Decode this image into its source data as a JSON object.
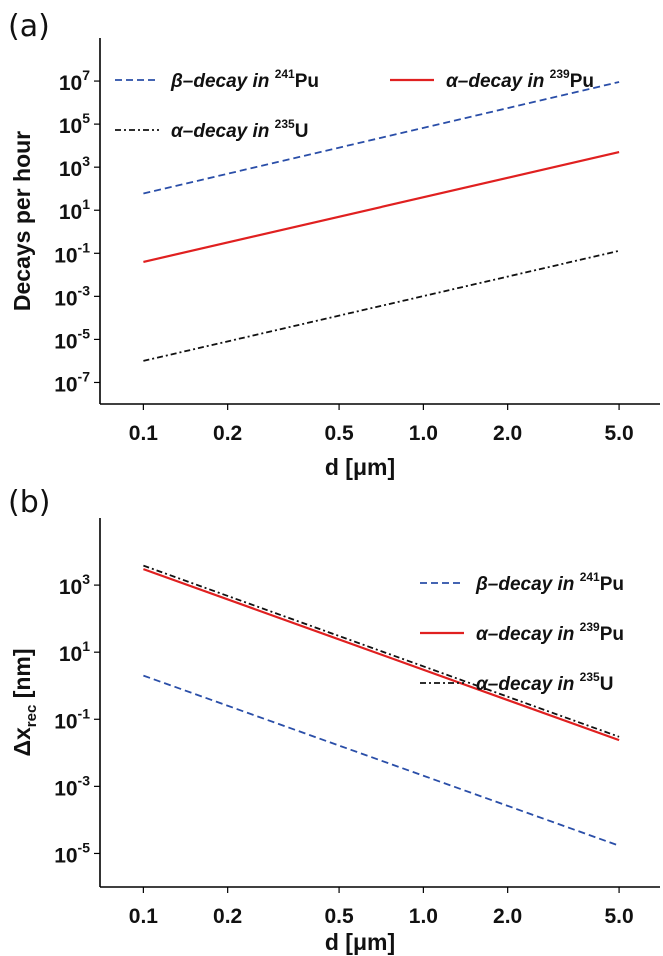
{
  "chart_data": [
    {
      "panel_label": "(a)",
      "type": "line",
      "xlabel": "d [μm]",
      "ylabel": "Decays per hour",
      "xscale": "log",
      "yscale": "log",
      "xlim": [
        0.07,
        7.0
      ],
      "ylim": [
        1e-08,
        1000000000.0
      ],
      "xticks": [
        0.1,
        0.2,
        0.5,
        1.0,
        2.0,
        5.0
      ],
      "xtick_labels": [
        "0.1",
        "0.2",
        "0.5",
        "1.0",
        "2.0",
        "5.0"
      ],
      "ytick_exponents": [
        -7,
        -5,
        -3,
        -1,
        1,
        3,
        5,
        7
      ],
      "ytick_base": "10",
      "legend_position": "top",
      "legend_columns": 2,
      "series": [
        {
          "name_prefix": "β–decay in ",
          "isotope_mass": "241",
          "isotope_symbol": "Pu",
          "color": "#2a4ea8",
          "dash": "dashed",
          "x": [
            0.1,
            5.0
          ],
          "y": [
            60,
            9000000
          ]
        },
        {
          "name_prefix": "α–decay in ",
          "isotope_mass": "239",
          "isotope_symbol": "Pu",
          "color": "#e02020",
          "dash": "solid",
          "x": [
            0.1,
            5.0
          ],
          "y": [
            0.04,
            5000
          ]
        },
        {
          "name_prefix": "α–decay in ",
          "isotope_mass": "235",
          "isotope_symbol": "U",
          "color": "#111111",
          "dash": "dashdot",
          "x": [
            0.1,
            5.0
          ],
          "y": [
            1e-06,
            0.13
          ]
        }
      ]
    },
    {
      "panel_label": "(b)",
      "type": "line",
      "xlabel": "d [μm]",
      "ylabel_main": "Δx",
      "ylabel_sub": "rec",
      "ylabel_unit": " [nm]",
      "xscale": "log",
      "yscale": "log",
      "xlim": [
        0.07,
        7.0
      ],
      "ylim": [
        1e-06,
        100000.0
      ],
      "xticks": [
        0.1,
        0.2,
        0.5,
        1.0,
        2.0,
        5.0
      ],
      "xtick_labels": [
        "0.1",
        "0.2",
        "0.5",
        "1.0",
        "2.0",
        "5.0"
      ],
      "ytick_exponents": [
        -5,
        -3,
        -1,
        1,
        3
      ],
      "ytick_base": "10",
      "legend_position": "top-right",
      "legend_columns": 1,
      "series": [
        {
          "name_prefix": "β–decay in ",
          "isotope_mass": "241",
          "isotope_symbol": "Pu",
          "color": "#2a4ea8",
          "dash": "dashed",
          "x": [
            0.1,
            5.0
          ],
          "y": [
            2.0,
            1.7e-05
          ]
        },
        {
          "name_prefix": "α–decay in ",
          "isotope_mass": "239",
          "isotope_symbol": "Pu",
          "color": "#e02020",
          "dash": "solid",
          "x": [
            0.1,
            5.0
          ],
          "y": [
            3000,
            0.024
          ]
        },
        {
          "name_prefix": "α–decay in ",
          "isotope_mass": "235",
          "isotope_symbol": "U",
          "color": "#111111",
          "dash": "dashdot",
          "x": [
            0.1,
            5.0
          ],
          "y": [
            3800,
            0.03
          ]
        }
      ]
    }
  ]
}
